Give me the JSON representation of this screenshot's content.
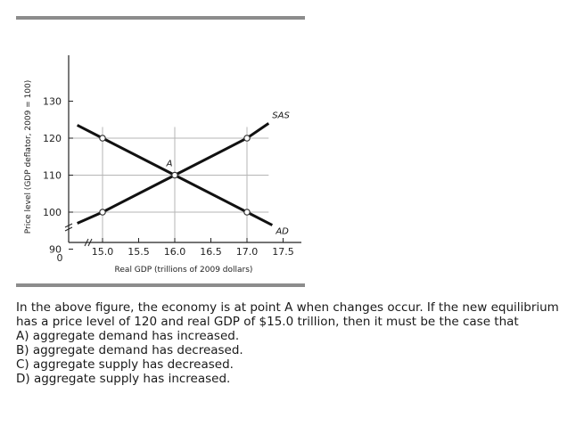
{
  "chart_data": {
    "type": "line",
    "xlabel": "Real GDP (trillions of 2009 dollars)",
    "ylabel": "Price level (GDP deflator, 2009 = 100)",
    "xlim": [
      14.5,
      17.6
    ],
    "ylim": [
      85,
      133
    ],
    "x_ticks": [
      15.0,
      15.5,
      16.0,
      16.5,
      17.0,
      17.5
    ],
    "x_tick_labels": [
      "15.0",
      "15.5",
      "16.0",
      "16.5",
      "17.0",
      "17.5"
    ],
    "y_ticks": [
      90,
      100,
      110,
      120,
      130
    ],
    "y_tick_labels": [
      "90",
      "100",
      "110",
      "120",
      "130"
    ],
    "origin_label": "0",
    "axis_breaks": true,
    "grid": "guide lines at 15.0, 16.0, 17.0 and 100, 110, 120",
    "series": [
      {
        "name": "SAS",
        "x": [
          14.65,
          15.0,
          16.0,
          17.0,
          17.3
        ],
        "y": [
          97,
          100,
          110,
          120,
          124
        ],
        "color": "#111111"
      },
      {
        "name": "AD",
        "x": [
          14.65,
          15.0,
          16.0,
          17.0,
          17.35
        ],
        "y": [
          123.5,
          120,
          110,
          100,
          96.5
        ],
        "color": "#111111"
      }
    ],
    "marked_points": [
      {
        "x": 15.0,
        "y": 100
      },
      {
        "x": 15.0,
        "y": 120
      },
      {
        "x": 16.0,
        "y": 110
      },
      {
        "x": 17.0,
        "y": 120
      },
      {
        "x": 17.0,
        "y": 100
      }
    ],
    "annotations": [
      {
        "text": "A",
        "x": 16.0,
        "y": 110
      }
    ]
  },
  "question": {
    "stem": "In the above figure, the economy is at point A when changes occur. If the new equilibrium has a price level of 120 and real GDP of $15.0 trillion, then it must be the case that",
    "choices": [
      "A) aggregate demand has increased.",
      "B) aggregate demand has decreased.",
      "C) aggregate supply has decreased.",
      "D) aggregate supply has increased."
    ]
  }
}
